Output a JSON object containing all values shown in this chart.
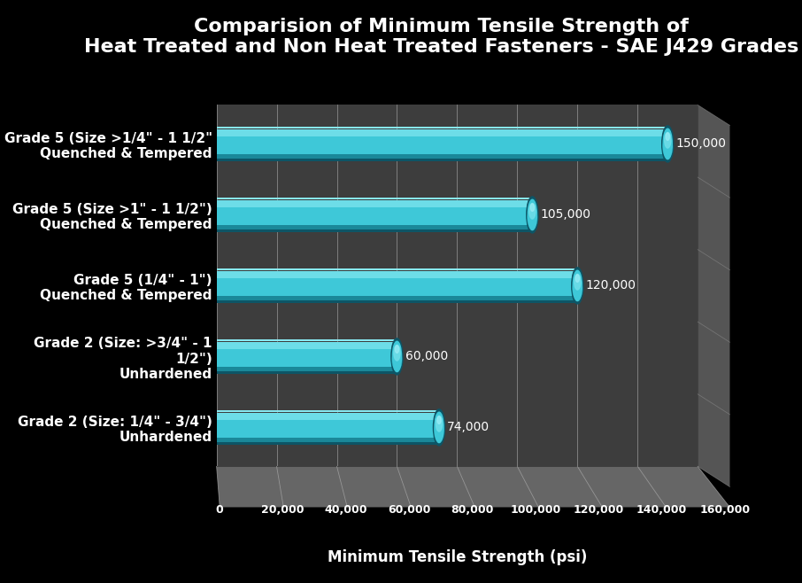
{
  "title_line1": "Comparision of Minimum Tensile Strength of",
  "title_line2": "Heat Treated and Non Heat Treated Fasteners - SAE J429 Grades",
  "xlabel": "Minimum Tensile Strength (psi)",
  "categories": [
    "Grade 2 (Size: 1/4\" - 3/4\")\nUnhardened",
    "Grade 2 (Size: >3/4\" - 1\n1/2\")\nUnhardened",
    "Grade 5 (1/4\" - 1\")\nQuenched & Tempered",
    "Grade 5 (Size >1\" - 1 1/2\")\nQuenched & Tempered",
    "Grade 5 (Size >1/4\" - 1 1/2\"\nQuenched & Tempered"
  ],
  "values": [
    74000,
    60000,
    120000,
    105000,
    150000
  ],
  "bar_color_main": "#3EC8D8",
  "bar_color_light": "#6DDDE8",
  "bar_color_dark": "#1A8899",
  "bar_color_very_dark": "#0D5566",
  "background_color": "#000000",
  "plot_bg_color": "#3d3d3d",
  "floor_color_light": "#888888",
  "floor_color_dark": "#555555",
  "grid_color": "#aaaaaa",
  "text_color": "#ffffff",
  "title_fontsize": 16,
  "label_fontsize": 11,
  "tick_fontsize": 10,
  "value_fontsize": 10,
  "xlim": [
    0,
    160000
  ],
  "xticks": [
    0,
    20000,
    40000,
    60000,
    80000,
    100000,
    120000,
    140000,
    160000
  ],
  "xtick_labels": [
    "0",
    "20,000",
    "40,000",
    "60,000",
    "80,000",
    "100,000",
    "120,000",
    "140,000",
    "160,000"
  ],
  "value_labels": [
    "74,000",
    "60,000",
    "120,000",
    "105,000",
    "150,000"
  ],
  "bar_height": 0.52
}
